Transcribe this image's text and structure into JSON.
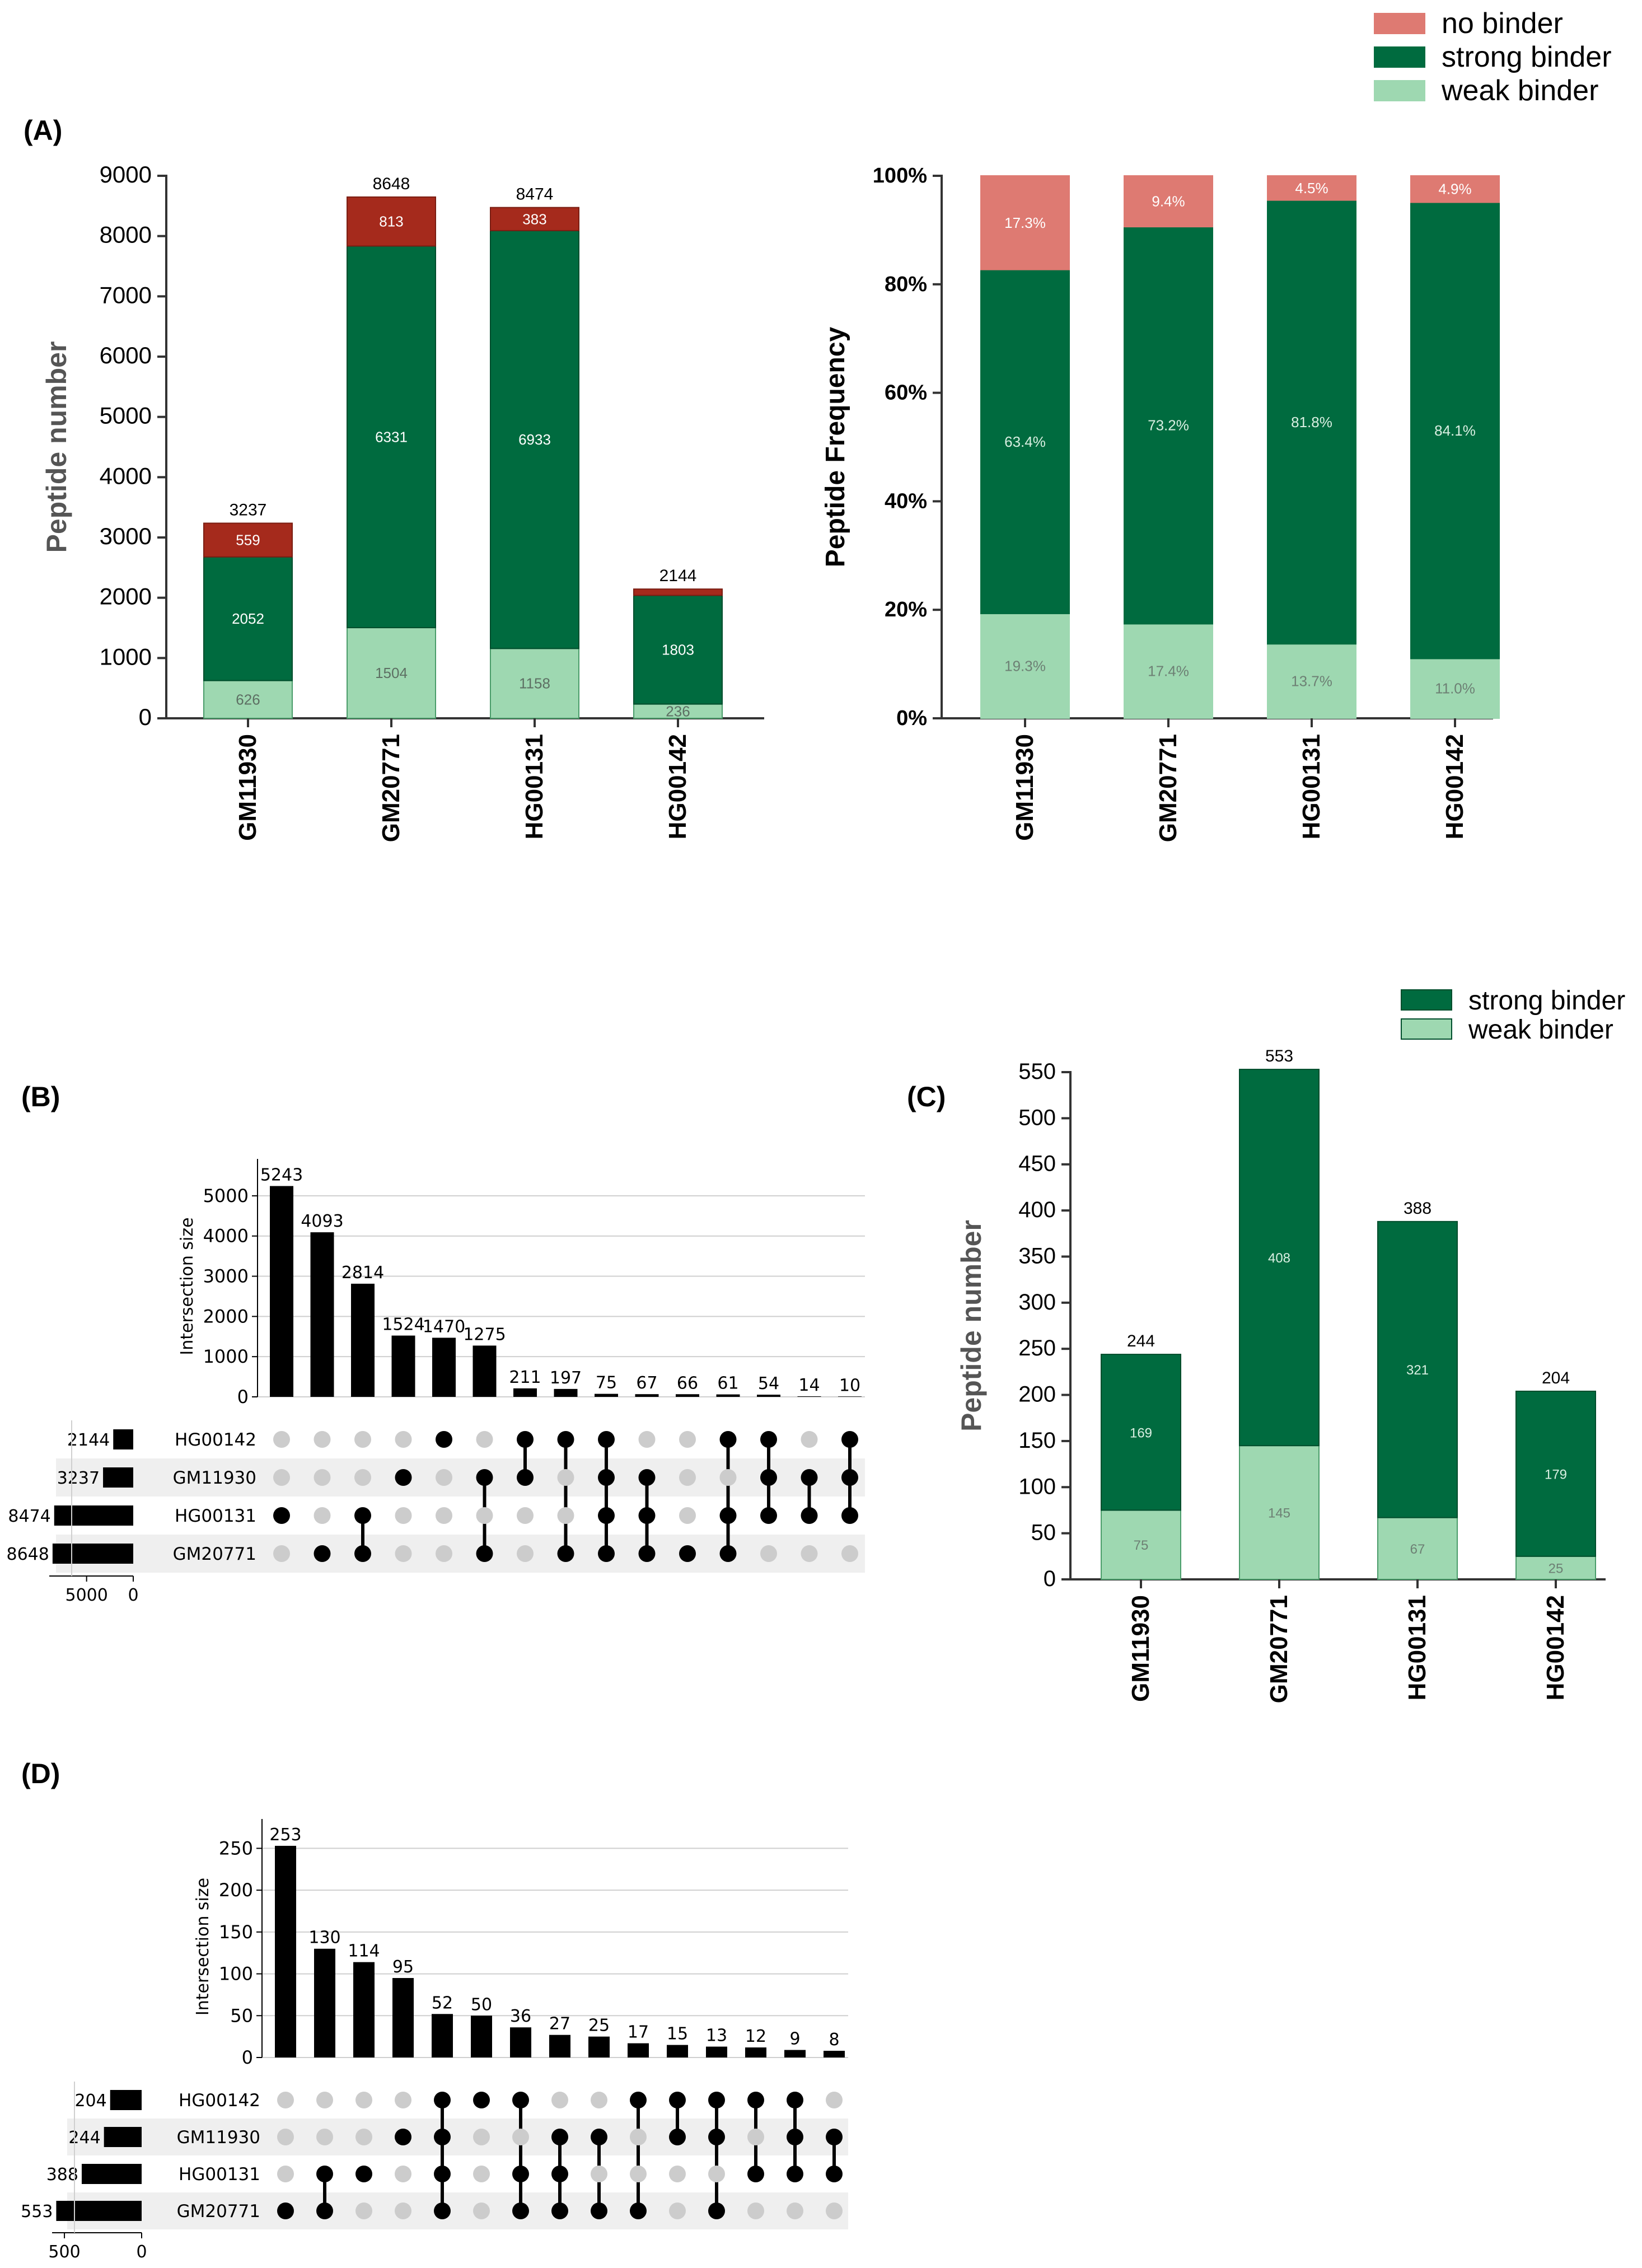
{
  "colors": {
    "no_binder_abs": "#A52A1C",
    "no_binder_pct": "#DE7A72",
    "strong": "#006B3F",
    "weak": "#9ED8B1",
    "upset_bar": "#000000",
    "dot_off": "#CCCCCC",
    "stripe": "#EFEFEF"
  },
  "chart_data": [
    {
      "id": "A_left",
      "panel_label": "(A)",
      "type": "bar",
      "stacked": true,
      "categories": [
        "GM11930",
        "GM20771",
        "HG00131",
        "HG00142"
      ],
      "series": [
        {
          "name": "weak binder",
          "values": [
            626,
            1504,
            1158,
            236
          ],
          "labels": [
            "626",
            "1504",
            "1158",
            "236"
          ]
        },
        {
          "name": "strong binder",
          "values": [
            2052,
            6331,
            6933,
            1803
          ],
          "labels": [
            "2052",
            "6331",
            "6933",
            "1803"
          ]
        },
        {
          "name": "no binder",
          "values": [
            559,
            813,
            383,
            105
          ],
          "labels": [
            "559",
            "813",
            "383",
            ""
          ]
        }
      ],
      "totals": [
        "3237",
        "8648",
        "8474",
        "2144"
      ],
      "ylabel": "Peptide number",
      "ylim": [
        0,
        9000
      ],
      "yticks": [
        "0",
        "1000",
        "2000",
        "3000",
        "4000",
        "5000",
        "6000",
        "7000",
        "8000",
        "9000"
      ]
    },
    {
      "id": "A_right",
      "type": "bar",
      "stacked": true,
      "categories": [
        "GM11930",
        "GM20771",
        "HG00131",
        "HG00142"
      ],
      "series": [
        {
          "name": "weak binder",
          "values": [
            19.3,
            17.4,
            13.7,
            11.0
          ],
          "labels": [
            "19.3%",
            "17.4%",
            "13.7%",
            "11.0%"
          ]
        },
        {
          "name": "strong binder",
          "values": [
            63.4,
            73.2,
            81.8,
            84.1
          ],
          "labels": [
            "63.4%",
            "73.2%",
            "81.8%",
            "84.1%"
          ]
        },
        {
          "name": "no binder",
          "values": [
            17.3,
            9.4,
            4.5,
            4.9
          ],
          "labels": [
            "17.3%",
            "9.4%",
            "4.5%",
            "4.9%"
          ]
        }
      ],
      "ylabel": "Peptide Frequency",
      "ylim": [
        0,
        100
      ],
      "yticks": [
        "0%",
        "20%",
        "40%",
        "60%",
        "80%",
        "100%"
      ],
      "legend": {
        "position": "top-right",
        "entries": [
          "no binder",
          "strong binder",
          "weak binder"
        ]
      }
    },
    {
      "id": "B",
      "panel_label": "(B)",
      "type": "upset",
      "sets": [
        "HG00142",
        "GM11930",
        "HG00131",
        "GM20771"
      ],
      "set_sizes": [
        2144,
        3237,
        8474,
        8648
      ],
      "set_size_labels": [
        "2144",
        "3237",
        "8474",
        "8648"
      ],
      "set_size_ticks": [
        "5000",
        "0"
      ],
      "set_size_tick_values": [
        5000,
        0
      ],
      "set_size_max": 9000,
      "intersections": [
        {
          "value": 5243,
          "members": [
            "HG00131"
          ]
        },
        {
          "value": 4093,
          "members": [
            "GM20771"
          ]
        },
        {
          "value": 2814,
          "members": [
            "HG00131",
            "GM20771"
          ]
        },
        {
          "value": 1524,
          "members": [
            "GM11930"
          ]
        },
        {
          "value": 1470,
          "members": [
            "HG00142"
          ]
        },
        {
          "value": 1275,
          "members": [
            "GM11930",
            "GM20771"
          ]
        },
        {
          "value": 211,
          "members": [
            "HG00142",
            "GM11930"
          ]
        },
        {
          "value": 197,
          "members": [
            "HG00142",
            "GM20771"
          ]
        },
        {
          "value": 75,
          "members": [
            "HG00142",
            "GM11930",
            "HG00131",
            "GM20771"
          ]
        },
        {
          "value": 67,
          "members": [
            "GM11930",
            "HG00131",
            "GM20771"
          ]
        },
        {
          "value": 66,
          "members": [
            "GM20771"
          ]
        },
        {
          "value": 61,
          "members": [
            "HG00142",
            "HG00131",
            "GM20771"
          ]
        },
        {
          "value": 54,
          "members": [
            "HG00142",
            "GM11930",
            "HG00131"
          ]
        },
        {
          "value": 14,
          "members": [
            "GM11930",
            "HG00131"
          ]
        },
        {
          "value": 10,
          "members": [
            "HG00142",
            "GM11930",
            "HG00131"
          ]
        }
      ],
      "intersection_labels": [
        "5243",
        "4093",
        "2814",
        "1524",
        "1470",
        "1275",
        "211",
        "197",
        "75",
        "67",
        "66",
        "61",
        "54",
        "14",
        "10"
      ],
      "ylabel": "Intersection size",
      "ylim": [
        0,
        5500
      ],
      "yticks": [
        "0",
        "1000",
        "2000",
        "3000",
        "4000",
        "5000"
      ],
      "ytick_values": [
        0,
        1000,
        2000,
        3000,
        4000,
        5000
      ]
    },
    {
      "id": "C",
      "panel_label": "(C)",
      "type": "bar",
      "stacked": true,
      "categories": [
        "GM11930",
        "GM20771",
        "HG00131",
        "HG00142"
      ],
      "series": [
        {
          "name": "weak binder",
          "values": [
            75,
            145,
            67,
            25
          ],
          "labels": [
            "75",
            "145",
            "67",
            "25"
          ]
        },
        {
          "name": "strong binder",
          "values": [
            169,
            408,
            321,
            179
          ],
          "labels": [
            "169",
            "408",
            "321",
            "179"
          ]
        }
      ],
      "totals": [
        "244",
        "553",
        "388",
        "204"
      ],
      "ylabel": "Peptide number",
      "ylim": [
        0,
        550
      ],
      "yticks": [
        "0",
        "50",
        "100",
        "150",
        "200",
        "250",
        "300",
        "350",
        "400",
        "450",
        "500",
        "550"
      ],
      "legend": {
        "position": "top-right",
        "entries": [
          "strong binder",
          "weak binder"
        ]
      }
    },
    {
      "id": "D",
      "panel_label": "(D)",
      "type": "upset",
      "sets": [
        "HG00142",
        "GM11930",
        "HG00131",
        "GM20771"
      ],
      "set_sizes": [
        204,
        244,
        388,
        553
      ],
      "set_size_labels": [
        "204",
        "244",
        "388",
        "553"
      ],
      "set_size_ticks": [
        "500",
        "0"
      ],
      "set_size_tick_values": [
        500,
        0
      ],
      "set_size_max": 580,
      "intersections": [
        {
          "value": 253,
          "members": [
            "GM20771"
          ]
        },
        {
          "value": 130,
          "members": [
            "HG00131",
            "GM20771"
          ]
        },
        {
          "value": 114,
          "members": [
            "HG00131"
          ]
        },
        {
          "value": 95,
          "members": [
            "GM11930"
          ]
        },
        {
          "value": 52,
          "members": [
            "HG00142",
            "GM11930",
            "HG00131",
            "GM20771"
          ]
        },
        {
          "value": 50,
          "members": [
            "HG00142"
          ]
        },
        {
          "value": 36,
          "members": [
            "HG00142",
            "HG00131",
            "GM20771"
          ]
        },
        {
          "value": 27,
          "members": [
            "GM11930",
            "HG00131",
            "GM20771"
          ]
        },
        {
          "value": 25,
          "members": [
            "GM11930",
            "GM20771"
          ]
        },
        {
          "value": 17,
          "members": [
            "HG00142",
            "GM20771"
          ]
        },
        {
          "value": 15,
          "members": [
            "HG00142",
            "GM11930"
          ]
        },
        {
          "value": 13,
          "members": [
            "HG00142",
            "GM11930",
            "GM20771"
          ]
        },
        {
          "value": 12,
          "members": [
            "HG00142",
            "HG00131"
          ]
        },
        {
          "value": 9,
          "members": [
            "HG00142",
            "GM11930",
            "HG00131"
          ]
        },
        {
          "value": 8,
          "members": [
            "GM11930",
            "HG00131"
          ]
        }
      ],
      "intersection_labels": [
        "253",
        "130",
        "114",
        "95",
        "52",
        "50",
        "36",
        "27",
        "25",
        "17",
        "15",
        "13",
        "12",
        "9",
        "8"
      ],
      "ylabel": "Intersection size",
      "ylim": [
        0,
        265
      ],
      "yticks": [
        "0",
        "50",
        "100",
        "150",
        "200",
        "250"
      ],
      "ytick_values": [
        0,
        50,
        100,
        150,
        200,
        250
      ]
    }
  ]
}
